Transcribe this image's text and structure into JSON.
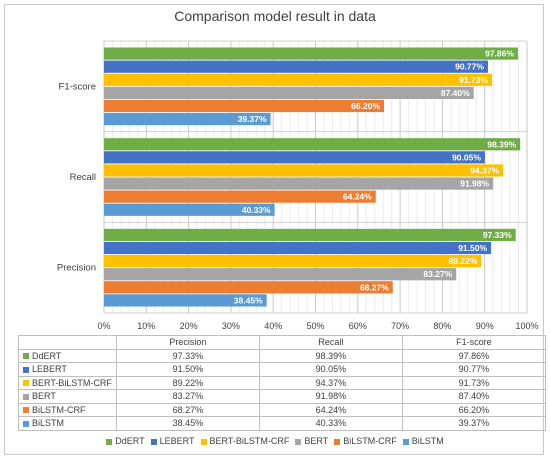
{
  "chart_data": {
    "type": "bar",
    "orientation": "horizontal",
    "title": "Comparison model result in data",
    "categories": [
      "F1-score",
      "Recall",
      "Precision"
    ],
    "series": [
      {
        "name": "DdERT",
        "color": "#70ad47",
        "values": [
          97.86,
          98.39,
          97.33
        ],
        "labels": [
          "97.86%",
          "98.39%",
          "97.33%"
        ]
      },
      {
        "name": "LEBERT",
        "color": "#4472c4",
        "values": [
          90.77,
          90.05,
          91.5
        ],
        "labels": [
          "90.77%",
          "90.05%",
          "91.50%"
        ]
      },
      {
        "name": "BERT-BiLSTM-CRF",
        "color": "#ffc000",
        "values": [
          91.73,
          94.37,
          89.22
        ],
        "labels": [
          "91.73%",
          "94.37%",
          "89.22%"
        ]
      },
      {
        "name": "BERT",
        "color": "#a5a5a5",
        "values": [
          87.4,
          91.98,
          83.27
        ],
        "labels": [
          "87.40%",
          "91.98%",
          "83.27%"
        ]
      },
      {
        "name": "BiLSTM-CRF",
        "color": "#ed7d31",
        "values": [
          66.2,
          64.24,
          68.27
        ],
        "labels": [
          "66.20%",
          "64.24%",
          "68.27%"
        ]
      },
      {
        "name": "BiLSTM",
        "color": "#5b9bd5",
        "values": [
          39.37,
          40.33,
          38.45
        ],
        "labels": [
          "39.37%",
          "40.33%",
          "38.45%"
        ]
      }
    ],
    "xlim": [
      0,
      100
    ],
    "x_ticks": [
      "0%",
      "10%",
      "20%",
      "30%",
      "40%",
      "50%",
      "60%",
      "70%",
      "80%",
      "90%",
      "100%"
    ],
    "grid": true,
    "legend": "bottom",
    "table": {
      "columns": [
        "Precision",
        "Recall",
        "F1-score"
      ],
      "rows": [
        {
          "name": "DdERT",
          "values": [
            "97.33%",
            "98.39%",
            "97.86%"
          ]
        },
        {
          "name": "LEBERT",
          "values": [
            "91.50%",
            "90.05%",
            "90.77%"
          ]
        },
        {
          "name": "BERT-BiLSTM-CRF",
          "values": [
            "89.22%",
            "94.37%",
            "91.73%"
          ]
        },
        {
          "name": "BERT",
          "values": [
            "83.27%",
            "91.98%",
            "87.40%"
          ]
        },
        {
          "name": "BiLSTM-CRF",
          "values": [
            "68.27%",
            "64.24%",
            "66.20%"
          ]
        },
        {
          "name": "BiLSTM",
          "values": [
            "38.45%",
            "40.33%",
            "39.37%"
          ]
        }
      ]
    }
  }
}
